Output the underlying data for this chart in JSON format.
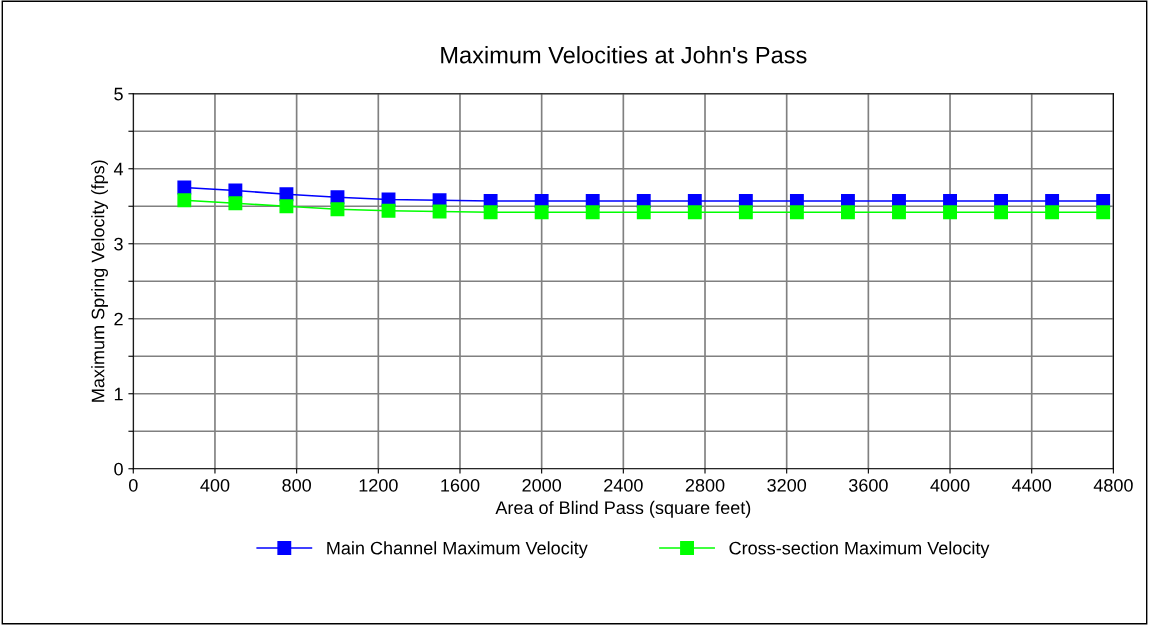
{
  "chart_data": {
    "type": "line",
    "title": "Maximum Velocities at John's Pass",
    "xlabel": "Area of Blind Pass (square feet)",
    "ylabel": "Maximum Spring Velocity (fps)",
    "x": [
      250,
      500,
      750,
      1000,
      1250,
      1500,
      1750,
      2000,
      2250,
      2500,
      2750,
      3000,
      3250,
      3500,
      3750,
      4000,
      4250,
      4500,
      4750
    ],
    "series": [
      {
        "name": "Main Channel Maximum Velocity",
        "color": "#0000ff",
        "values": [
          3.75,
          3.71,
          3.66,
          3.62,
          3.59,
          3.58,
          3.57,
          3.57,
          3.57,
          3.57,
          3.57,
          3.57,
          3.57,
          3.57,
          3.57,
          3.57,
          3.57,
          3.57,
          3.57
        ]
      },
      {
        "name": "Cross-section Maximum Velocity",
        "color": "#00ff00",
        "values": [
          3.58,
          3.54,
          3.5,
          3.46,
          3.44,
          3.43,
          3.42,
          3.42,
          3.42,
          3.42,
          3.42,
          3.42,
          3.42,
          3.42,
          3.42,
          3.42,
          3.42,
          3.42,
          3.42
        ]
      }
    ],
    "xlim": [
      0,
      4800
    ],
    "xticks": [
      0,
      400,
      800,
      1200,
      1600,
      2000,
      2400,
      2800,
      3200,
      3600,
      4000,
      4400,
      4800
    ],
    "ylim": [
      0,
      5
    ],
    "yticks": [
      0,
      {
        "value": 0.5,
        "label": null
      },
      1,
      {
        "value": 1.5,
        "label": null
      },
      2,
      {
        "value": 2.5,
        "label": null
      },
      3,
      {
        "value": 3.5,
        "label": null
      },
      4,
      {
        "value": 4.5,
        "label": null
      },
      5
    ],
    "grid": true,
    "legend": "bottom",
    "marker": "square",
    "line_style": "solid"
  }
}
